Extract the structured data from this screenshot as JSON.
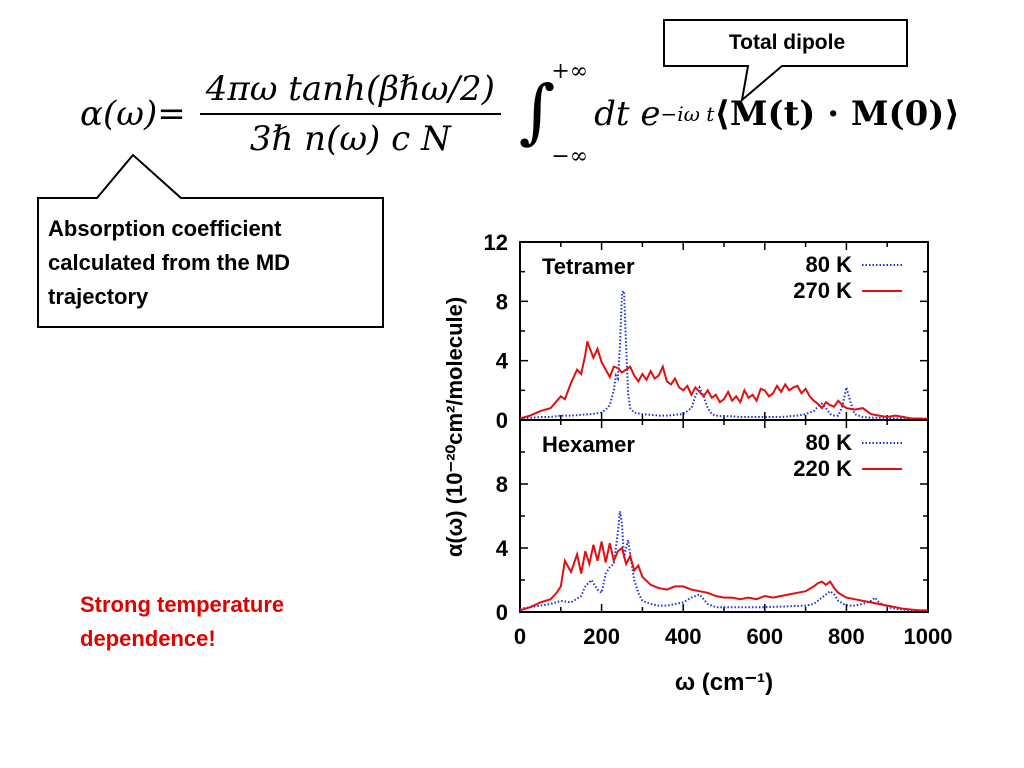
{
  "formula": {
    "lhs": "α(ω)",
    "eq": "=",
    "numerator": "4πω tanh(βℏω/2)",
    "denominator": "3ℏ n(ω) c N",
    "integral_sign": "∫",
    "upper_limit": "+∞",
    "lower_limit": "−∞",
    "integrand": "dt e",
    "exponent": "−iω t",
    "correlator": "⟨M(t) · M(0)⟩"
  },
  "callouts": {
    "total_dipole": "Total dipole",
    "absorption_line1": "Absorption coefficient",
    "absorption_line2": "calculated from the MD",
    "absorption_line3": "trajectory"
  },
  "note": {
    "line1": "Strong temperature",
    "line2": "dependence!"
  },
  "colors": {
    "blue_series": "#1f2fd6",
    "red_series": "#e01010",
    "note_red": "#e00000"
  },
  "chart_data": [
    {
      "type": "line",
      "panel": "top",
      "title": "Tetramer",
      "xlim": [
        0,
        1000
      ],
      "ylim": [
        0,
        12
      ],
      "yticks": [
        0,
        4,
        8,
        12
      ],
      "series": [
        {
          "name": "80 K",
          "style": "dotted",
          "color": "#1f2fd6",
          "x": [
            0,
            25,
            50,
            75,
            100,
            125,
            150,
            175,
            200,
            210,
            220,
            230,
            235,
            240,
            245,
            250,
            255,
            260,
            265,
            270,
            280,
            300,
            320,
            340,
            360,
            380,
            400,
            420,
            430,
            440,
            450,
            460,
            470,
            480,
            500,
            520,
            540,
            560,
            580,
            600,
            620,
            640,
            660,
            680,
            700,
            720,
            730,
            740,
            750,
            760,
            770,
            780,
            790,
            800,
            810,
            820,
            840,
            860,
            880,
            900,
            920,
            940,
            960,
            980,
            1000
          ],
          "y": [
            0.1,
            0.15,
            0.2,
            0.2,
            0.3,
            0.3,
            0.35,
            0.4,
            0.5,
            0.7,
            1.0,
            2.0,
            3.0,
            2.8,
            5.0,
            8.6,
            8.7,
            5.0,
            1.8,
            0.8,
            0.5,
            0.4,
            0.35,
            0.3,
            0.3,
            0.35,
            0.4,
            0.8,
            1.6,
            2.2,
            1.6,
            0.8,
            0.4,
            0.3,
            0.25,
            0.25,
            0.2,
            0.2,
            0.2,
            0.2,
            0.2,
            0.2,
            0.25,
            0.3,
            0.4,
            0.6,
            0.9,
            1.1,
            0.8,
            0.4,
            0.3,
            0.3,
            0.9,
            2.2,
            1.2,
            0.4,
            0.2,
            0.15,
            0.15,
            0.1,
            0.1,
            0.1,
            0.1,
            0.1,
            0.1
          ]
        },
        {
          "name": "270 K",
          "style": "solid",
          "color": "#e01010",
          "x": [
            0,
            25,
            50,
            75,
            100,
            110,
            125,
            140,
            150,
            160,
            165,
            170,
            180,
            190,
            200,
            210,
            220,
            230,
            240,
            250,
            260,
            270,
            280,
            290,
            300,
            310,
            320,
            330,
            340,
            350,
            360,
            370,
            380,
            390,
            400,
            410,
            420,
            430,
            440,
            450,
            460,
            470,
            480,
            490,
            500,
            510,
            520,
            530,
            540,
            550,
            560,
            570,
            580,
            590,
            600,
            610,
            620,
            630,
            640,
            650,
            660,
            670,
            680,
            690,
            700,
            710,
            720,
            730,
            740,
            750,
            760,
            770,
            780,
            790,
            800,
            820,
            840,
            860,
            880,
            900,
            920,
            940,
            960,
            980,
            1000
          ],
          "y": [
            0.1,
            0.3,
            0.6,
            0.8,
            1.6,
            1.4,
            2.5,
            3.4,
            3.1,
            4.4,
            5.3,
            4.9,
            4.2,
            4.8,
            3.9,
            3.4,
            2.9,
            3.6,
            3.5,
            3.2,
            3.4,
            3.6,
            3.0,
            2.6,
            3.1,
            2.7,
            3.3,
            2.8,
            3.0,
            3.6,
            2.6,
            2.4,
            2.8,
            2.2,
            2.0,
            2.3,
            1.7,
            2.2,
            1.9,
            1.6,
            2.0,
            1.5,
            1.7,
            1.2,
            1.4,
            1.9,
            1.3,
            1.6,
            1.2,
            2.0,
            1.5,
            1.7,
            1.3,
            2.1,
            2.0,
            1.6,
            1.8,
            2.3,
            1.9,
            2.4,
            2.0,
            2.2,
            2.3,
            1.8,
            2.1,
            1.6,
            1.3,
            1.1,
            0.8,
            1.2,
            1.0,
            0.9,
            1.3,
            1.0,
            0.8,
            0.7,
            0.8,
            0.4,
            0.3,
            0.2,
            0.3,
            0.2,
            0.1,
            0.1,
            0.05
          ]
        }
      ]
    },
    {
      "type": "line",
      "panel": "bottom",
      "title": "Hexamer",
      "xlabel": "ω (cm⁻¹)",
      "ylabel": "α(ω) (10⁻²⁰cm²/molecule)",
      "xlim": [
        0,
        1000
      ],
      "ylim": [
        0,
        12
      ],
      "xticks": [
        0,
        200,
        400,
        600,
        800,
        1000
      ],
      "yticks": [
        0,
        4,
        8
      ],
      "series": [
        {
          "name": "80 K",
          "style": "dotted",
          "color": "#1f2fd6",
          "x": [
            0,
            25,
            50,
            75,
            100,
            125,
            150,
            160,
            175,
            190,
            200,
            210,
            220,
            230,
            240,
            245,
            250,
            255,
            260,
            265,
            270,
            280,
            290,
            300,
            320,
            340,
            360,
            380,
            400,
            420,
            440,
            450,
            460,
            480,
            500,
            550,
            600,
            650,
            700,
            720,
            740,
            760,
            770,
            780,
            800,
            820,
            840,
            860,
            870,
            880,
            900,
            920,
            940,
            960,
            980,
            1000
          ],
          "y": [
            0.2,
            0.3,
            0.4,
            0.5,
            0.7,
            0.6,
            1.0,
            1.6,
            2.0,
            1.4,
            1.2,
            2.4,
            2.8,
            3.0,
            5.0,
            6.3,
            5.5,
            3.4,
            4.0,
            4.5,
            3.6,
            2.0,
            1.2,
            0.7,
            0.5,
            0.4,
            0.4,
            0.5,
            0.6,
            0.9,
            1.1,
            0.8,
            0.5,
            0.3,
            0.3,
            0.3,
            0.3,
            0.35,
            0.4,
            0.5,
            0.9,
            1.3,
            1.1,
            0.7,
            0.4,
            0.4,
            0.5,
            0.7,
            0.9,
            0.6,
            0.3,
            0.2,
            0.15,
            0.1,
            0.1,
            0.1
          ]
        },
        {
          "name": "220 K",
          "style": "solid",
          "color": "#e01010",
          "x": [
            0,
            25,
            50,
            75,
            90,
            100,
            110,
            125,
            140,
            150,
            160,
            170,
            180,
            190,
            200,
            210,
            220,
            230,
            240,
            250,
            260,
            270,
            280,
            290,
            300,
            320,
            340,
            360,
            380,
            400,
            420,
            440,
            460,
            480,
            500,
            520,
            540,
            560,
            580,
            600,
            620,
            640,
            660,
            680,
            700,
            720,
            730,
            740,
            750,
            760,
            770,
            780,
            800,
            820,
            840,
            860,
            880,
            900,
            920,
            940,
            960,
            980,
            1000
          ],
          "y": [
            0.1,
            0.3,
            0.6,
            0.8,
            1.2,
            1.6,
            3.2,
            2.5,
            3.6,
            2.4,
            3.8,
            3.0,
            4.2,
            3.2,
            4.4,
            3.1,
            4.3,
            3.2,
            3.8,
            4.0,
            3.0,
            3.5,
            2.6,
            2.9,
            2.2,
            1.7,
            1.5,
            1.4,
            1.6,
            1.6,
            1.4,
            1.3,
            1.2,
            1.0,
            0.9,
            0.9,
            0.8,
            0.9,
            0.8,
            1.0,
            0.9,
            1.0,
            1.1,
            1.2,
            1.3,
            1.6,
            1.8,
            1.9,
            1.7,
            1.9,
            1.5,
            1.2,
            0.9,
            0.8,
            0.7,
            0.6,
            0.5,
            0.4,
            0.3,
            0.2,
            0.15,
            0.1,
            0.1
          ]
        }
      ]
    }
  ]
}
